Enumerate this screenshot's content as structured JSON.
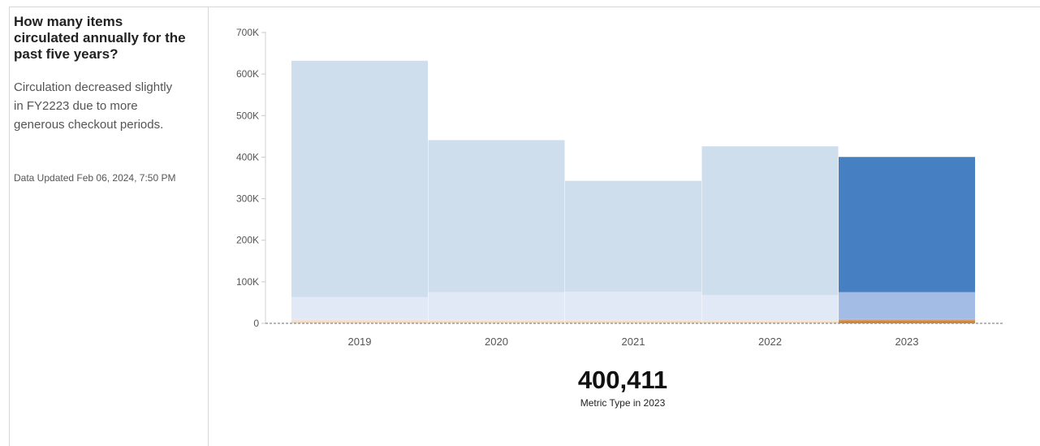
{
  "panel": {
    "title": "How many items circulated annually for the past five years?",
    "description": "Circulation decreased slightly in FY2223 due to more generous checkout periods.",
    "updated": "Data Updated Feb 06, 2024, 7:50 PM"
  },
  "metric": {
    "value": "400,411",
    "label": "Metric Type in 2023"
  },
  "chart_data": {
    "type": "bar",
    "stacked": true,
    "categories": [
      "2019",
      "2020",
      "2021",
      "2022",
      "2023"
    ],
    "highlight_category": "2023",
    "ylim": [
      0,
      700000
    ],
    "yticks": [
      0,
      100000,
      200000,
      300000,
      400000,
      500000,
      600000,
      700000
    ],
    "ytick_labels": [
      "0",
      "100K",
      "200K",
      "300K",
      "400K",
      "500K",
      "600K",
      "700K"
    ],
    "grid": false,
    "series": [
      {
        "values": [
          7000,
          6000,
          6000,
          5000,
          7000
        ],
        "color": "#f3dcc6",
        "highlight_color": "#d1873e"
      },
      {
        "values": [
          3000,
          3000,
          3000,
          2000,
          3000
        ],
        "color": "#f5e7d9",
        "highlight_color": "#e0aa76"
      },
      {
        "values": [
          53000,
          66000,
          67000,
          61000,
          65000
        ],
        "color": "#e2e9f6",
        "highlight_color": "#a3bce6"
      },
      {
        "values": [
          569000,
          366000,
          267000,
          358000,
          325411
        ],
        "color": "#cfdeed",
        "highlight_color": "#4780c2"
      }
    ]
  }
}
